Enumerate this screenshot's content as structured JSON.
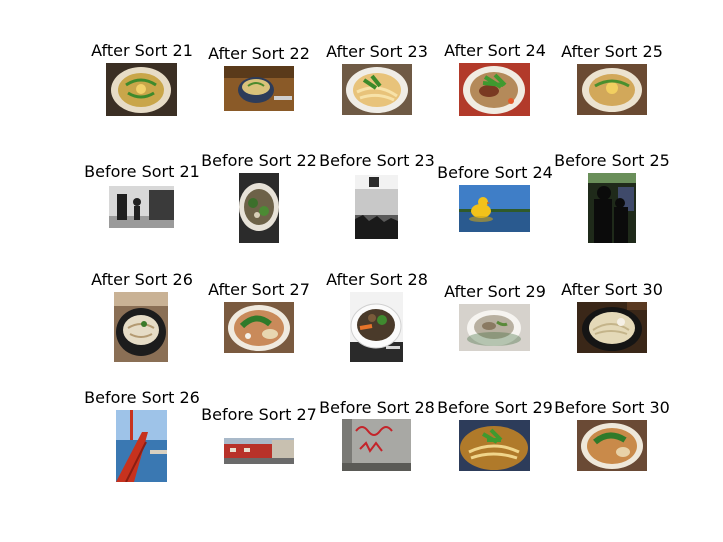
{
  "grid": {
    "row_1": [
      {
        "label": "After Sort 21",
        "image": "bowl-of-noodles-with-egg-and-scallions-icon"
      },
      {
        "label": "After Sort 22",
        "image": "bowl-of-soup-on-tray-icon"
      },
      {
        "label": "After Sort 23",
        "image": "udon-bowl-with-scallions-icon"
      },
      {
        "label": "After Sort 24",
        "image": "udon-bowl-with-beef-and-scallions-icon"
      },
      {
        "label": "After Sort 25",
        "image": "bowl-of-noodles-with-egg-icon"
      }
    ],
    "row_2": [
      {
        "label": "Before Sort 21",
        "image": "black-and-white-street-photo-icon"
      },
      {
        "label": "Before Sort 22",
        "image": "bowl-of-greens-icon"
      },
      {
        "label": "Before Sort 23",
        "image": "grayscale-texture-photo-icon"
      },
      {
        "label": "Before Sort 24",
        "image": "yellow-duck-on-lake-icon"
      },
      {
        "label": "Before Sort 25",
        "image": "silhouette-of-people-icon"
      }
    ],
    "row_3": [
      {
        "label": "After Sort 26",
        "image": "dark-bowl-of-noodles-icon"
      },
      {
        "label": "After Sort 27",
        "image": "ramen-bowl-with-greens-icon"
      },
      {
        "label": "After Sort 28",
        "image": "bowl-with-vegetables-icon"
      },
      {
        "label": "After Sort 29",
        "image": "bowl-of-pasta-soup-icon"
      },
      {
        "label": "After Sort 30",
        "image": "udon-in-dark-bowl-icon"
      }
    ],
    "row_4": [
      {
        "label": "Before Sort 26",
        "image": "red-bridge-over-water-icon"
      },
      {
        "label": "Before Sort 27",
        "image": "red-building-street-icon"
      },
      {
        "label": "Before Sort 28",
        "image": "graffiti-wall-icon"
      },
      {
        "label": "Before Sort 29",
        "image": "curry-udon-icon"
      },
      {
        "label": "Before Sort 30",
        "image": "ramen-with-greens-icon"
      }
    ]
  }
}
